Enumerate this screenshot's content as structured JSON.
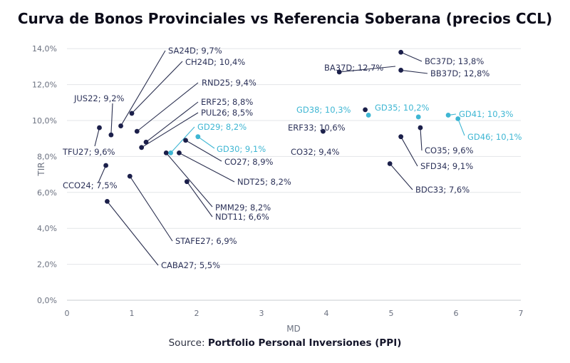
{
  "chart_data": {
    "type": "scatter",
    "title": "Curva de Bonos Provinciales vs Referencia Soberana (precios CCL)",
    "xlabel": "MD",
    "ylabel": "TIR",
    "xlim": [
      0,
      7
    ],
    "ylim": [
      0,
      15
    ],
    "x_ticks": [
      "0",
      "1",
      "2",
      "3",
      "4",
      "5",
      "6",
      "7"
    ],
    "y_ticks": [
      "0,0%",
      "2,0%",
      "4,0%",
      "6,0%",
      "8,0%",
      "10,0%",
      "12,0%",
      "14,0%"
    ],
    "grid": "horizontal",
    "colors": {
      "provincial": "#1b1f4a",
      "soberano": "#3eb6d3",
      "label_provincial": "#2c3259",
      "leader": "#2a2f4f"
    },
    "series": [
      {
        "group": "provincial",
        "points": [
          {
            "label": "SA24D; 9,7%",
            "x": 0.83,
            "y": 9.7
          },
          {
            "label": "CH24D; 10,4%",
            "x": 1.0,
            "y": 10.4
          },
          {
            "label": "JUS22; 9,2%",
            "x": 0.68,
            "y": 9.2
          },
          {
            "label": "RND25; 9,4%",
            "x": 1.08,
            "y": 9.4
          },
          {
            "label": "ERF25; 8,8%",
            "x": 1.22,
            "y": 8.8
          },
          {
            "label": "PUL26; 8,5%",
            "x": 1.15,
            "y": 8.5
          },
          {
            "label": "TFU27; 9,6%",
            "x": 0.5,
            "y": 9.6
          },
          {
            "label": "CO27; 8,9%",
            "x": 1.83,
            "y": 8.9
          },
          {
            "label": "NDT25; 8,2%",
            "x": 1.73,
            "y": 8.2
          },
          {
            "label": "CCO24; 7,5%",
            "x": 0.6,
            "y": 7.5
          },
          {
            "label": "STAFE27; 6,9%",
            "x": 0.97,
            "y": 6.9
          },
          {
            "label": "PMM29; 8,2%",
            "x": 1.53,
            "y": 8.2
          },
          {
            "label": "NDT11; 6,6%",
            "x": 1.85,
            "y": 6.6
          },
          {
            "label": "CABA27; 5,5%",
            "x": 0.62,
            "y": 5.5
          },
          {
            "label": "ERF33; 10,6%",
            "x": 4.6,
            "y": 10.6
          },
          {
            "label": "CO32; 9,4%",
            "x": 3.95,
            "y": 9.4
          },
          {
            "label": "BA37D; 12,7%",
            "x": 4.2,
            "y": 12.7
          },
          {
            "label": "BC37D; 13,8%",
            "x": 5.15,
            "y": 13.8
          },
          {
            "label": "BB37D; 12,8%",
            "x": 5.15,
            "y": 12.8
          },
          {
            "label": "CO35; 9,6%",
            "x": 5.45,
            "y": 9.6
          },
          {
            "label": "SFD34; 9,1%",
            "x": 5.15,
            "y": 9.1
          },
          {
            "label": "BDC33; 7,6%",
            "x": 4.98,
            "y": 7.6
          }
        ]
      },
      {
        "group": "soberano",
        "points": [
          {
            "label": "GD29; 8,2%",
            "x": 1.6,
            "y": 8.2
          },
          {
            "label": "GD30; 9,1%",
            "x": 2.02,
            "y": 9.1
          },
          {
            "label": "GD38; 10,3%",
            "x": 4.65,
            "y": 10.3
          },
          {
            "label": "GD35; 10,2%",
            "x": 5.42,
            "y": 10.2
          },
          {
            "label": "GD41; 10,3%",
            "x": 5.88,
            "y": 10.3
          },
          {
            "label": "GD46; 10,1%",
            "x": 6.03,
            "y": 10.1
          }
        ]
      }
    ]
  },
  "source": {
    "prefix": "Source: ",
    "name": "Portfolio Personal Inversiones (PPI)"
  }
}
